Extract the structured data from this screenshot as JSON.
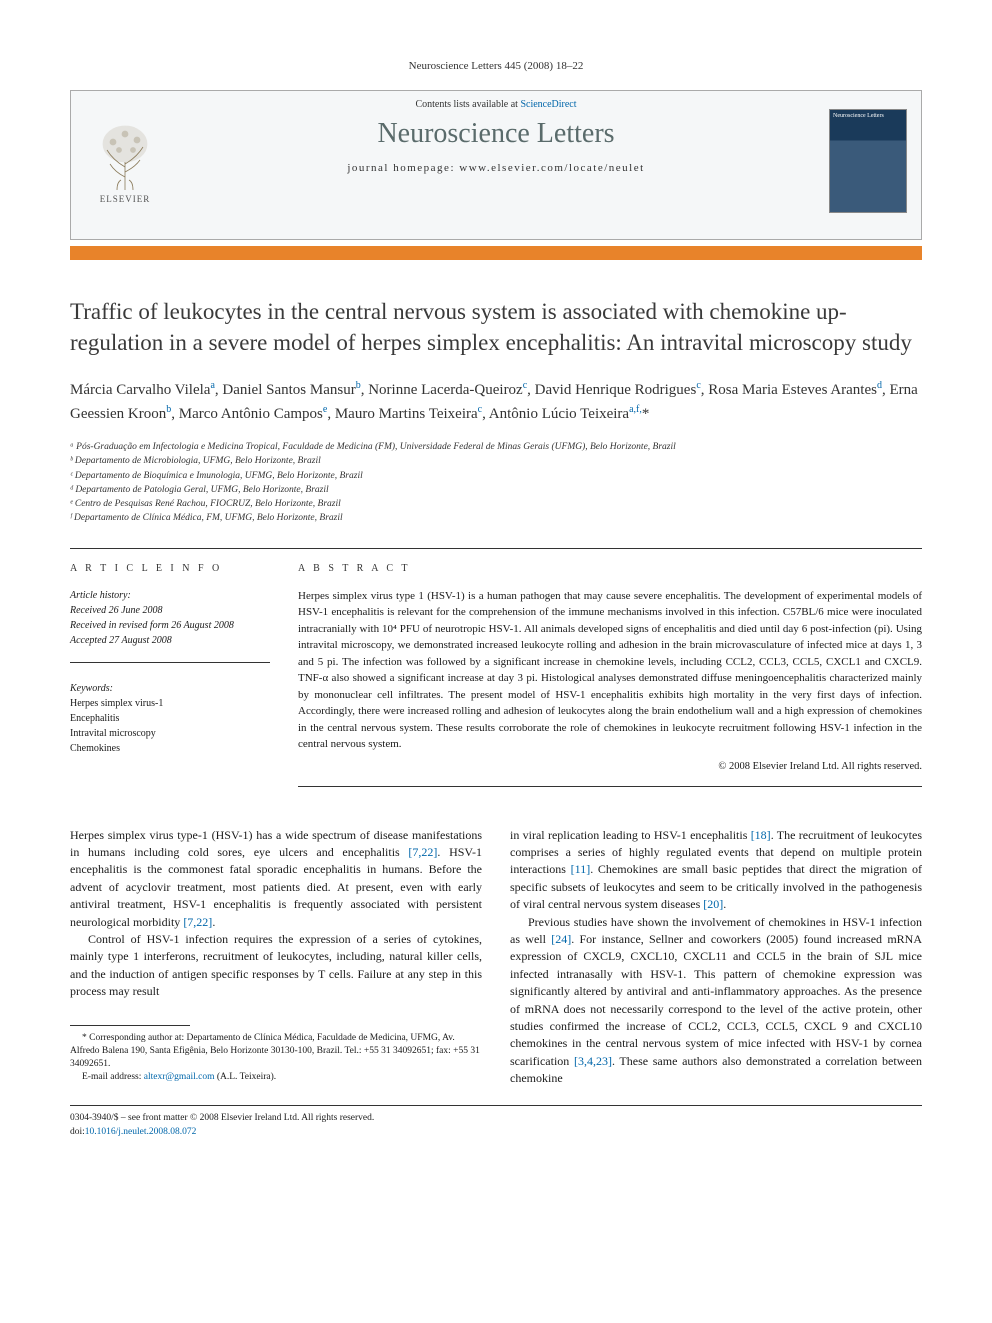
{
  "citation": "Neuroscience Letters 445 (2008) 18–22",
  "contents_line_prefix": "Contents lists available at ",
  "contents_link": "ScienceDirect",
  "journal_name": "Neuroscience Letters",
  "homepage_label": "journal homepage: ",
  "homepage_url": "www.elsevier.com/locate/neulet",
  "publisher": "ELSEVIER",
  "title": "Traffic of leukocytes in the central nervous system is associated with chemokine up-regulation in a severe model of herpes simplex encephalitis: An intravital microscopy study",
  "authors_html": "Márcia Carvalho Vilela<sup>a</sup>, Daniel Santos Mansur<sup>b</sup>, Norinne Lacerda-Queiroz<sup>c</sup>, David Henrique Rodrigues<sup>c</sup>, Rosa Maria Esteves Arantes<sup>d</sup>, Erna Geessien Kroon<sup>b</sup>, Marco Antônio Campos<sup>e</sup>, Mauro Martins Teixeira<sup>c</sup>, Antônio Lúcio Teixeira<sup>a,f,</sup><span class='author-star'>*</span>",
  "affiliations": [
    "ᵃ Pós-Graduação em Infectologia e Medicina Tropical, Faculdade de Medicina (FM), Universidade Federal de Minas Gerais (UFMG), Belo Horizonte, Brazil",
    "ᵇ Departamento de Microbiologia, UFMG, Belo Horizonte, Brazil",
    "ᶜ Departamento de Bioquímica e Imunologia, UFMG, Belo Horizonte, Brazil",
    "ᵈ Departamento de Patologia Geral, UFMG, Belo Horizonte, Brazil",
    "ᵉ Centro de Pesquisas René Rachou, FIOCRUZ, Belo Horizonte, Brazil",
    "ᶠ Departamento de Clínica Médica, FM, UFMG, Belo Horizonte, Brazil"
  ],
  "article_info_label": "A R T I C L E   I N F O",
  "abstract_label": "A B S T R A C T",
  "history": {
    "label": "Article history:",
    "received": "Received 26 June 2008",
    "revised": "Received in revised form 26 August 2008",
    "accepted": "Accepted 27 August 2008"
  },
  "keywords": {
    "label": "Keywords:",
    "items": [
      "Herpes simplex virus-1",
      "Encephalitis",
      "Intravital microscopy",
      "Chemokines"
    ]
  },
  "abstract": "Herpes simplex virus type 1 (HSV-1) is a human pathogen that may cause severe encephalitis. The development of experimental models of HSV-1 encephalitis is relevant for the comprehension of the immune mechanisms involved in this infection. C57BL/6 mice were inoculated intracranially with 10⁴ PFU of neurotropic HSV-1. All animals developed signs of encephalitis and died until day 6 post-infection (pi). Using intravital microscopy, we demonstrated increased leukocyte rolling and adhesion in the brain microvasculature of infected mice at days 1, 3 and 5 pi. The infection was followed by a significant increase in chemokine levels, including CCL2, CCL3, CCL5, CXCL1 and CXCL9. TNF-α also showed a significant increase at day 3 pi. Histological analyses demonstrated diffuse meningoencephalitis characterized mainly by mononuclear cell infiltrates. The present model of HSV-1 encephalitis exhibits high mortality in the very first days of infection. Accordingly, there were increased rolling and adhesion of leukocytes along the brain endothelium wall and a high expression of chemokines in the central nervous system. These results corroborate the role of chemokines in leukocyte recruitment following HSV-1 infection in the central nervous system.",
  "copyright": "© 2008 Elsevier Ireland Ltd. All rights reserved.",
  "body": {
    "left": [
      "Herpes simplex virus type-1 (HSV-1) has a wide spectrum of disease manifestations in humans including cold sores, eye ulcers and encephalitis [7,22]. HSV-1 encephalitis is the commonest fatal sporadic encephalitis in humans. Before the advent of acyclovir treatment, most patients died. At present, even with early antiviral treatment, HSV-1 encephalitis is frequently associated with persistent neurological morbidity [7,22].",
      "Control of HSV-1 infection requires the expression of a series of cytokines, mainly type 1 interferons, recruitment of leukocytes, including, natural killer cells, and the induction of antigen specific responses by T cells. Failure at any step in this process may result"
    ],
    "right": [
      "in viral replication leading to HSV-1 encephalitis [18]. The recruitment of leukocytes comprises a series of highly regulated events that depend on multiple protein interactions [11]. Chemokines are small basic peptides that direct the migration of specific subsets of leukocytes and seem to be critically involved in the pathogenesis of viral central nervous system diseases [20].",
      "Previous studies have shown the involvement of chemokines in HSV-1 infection as well [24]. For instance, Sellner and coworkers (2005) found increased mRNA expression of CXCL9, CXCL10, CXCL11 and CCL5 in the brain of SJL mice infected intranasally with HSV-1. This pattern of chemokine expression was significantly altered by antiviral and anti-inflammatory approaches. As the presence of mRNA does not necessarily correspond to the level of the active protein, other studies confirmed the increase of CCL2, CCL3, CCL5, CXCL 9 and CXCL10 chemokines in the central nervous system of mice infected with HSV-1 by cornea scarification [3,4,23]. These same authors also demonstrated a correlation between chemokine"
    ]
  },
  "footnote": {
    "corresponding": "* Corresponding author at: Departamento de Clínica Médica, Faculdade de Medicina, UFMG, Av. Alfredo Balena 190, Santa Efigênia, Belo Horizonte 30130-100, Brazil. Tel.: +55 31 34092651; fax: +55 31 34092651.",
    "email_label": "E-mail address: ",
    "email": "altexr@gmail.com",
    "email_suffix": " (A.L. Teixeira)."
  },
  "front_matter": "0304-3940/$ – see front matter © 2008 Elsevier Ireland Ltd. All rights reserved.",
  "doi_label": "doi:",
  "doi": "10.1016/j.neulet.2008.08.072",
  "colors": {
    "orange_bar": "#e8832a",
    "link": "#0066aa",
    "journal_gray": "#5a6b6b",
    "header_bg": "#f5f7f8"
  }
}
